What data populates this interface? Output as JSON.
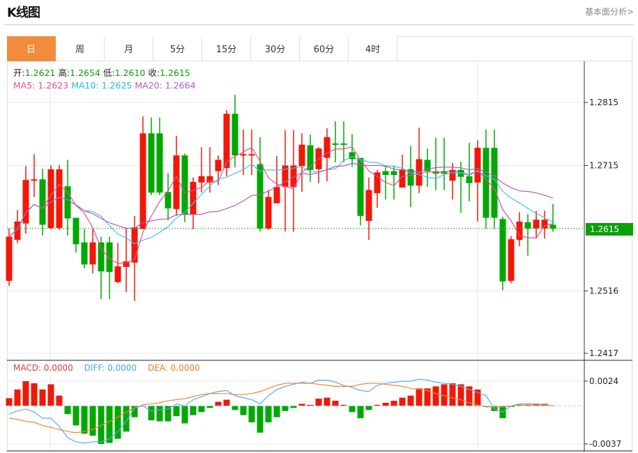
{
  "header": {
    "title": "K线图",
    "fundamental_link": "基本面分析>"
  },
  "tabs": [
    {
      "label": "日",
      "active": true
    },
    {
      "label": "周"
    },
    {
      "label": "月"
    },
    {
      "label": "5分"
    },
    {
      "label": "15分"
    },
    {
      "label": "30分"
    },
    {
      "label": "60分"
    },
    {
      "label": "4时"
    }
  ],
  "ohlc_info": {
    "open_label": "开:",
    "open": "1.2621",
    "high_label": "高:",
    "high": "1.2654",
    "low_label": "低:",
    "low": "1.2610",
    "close_label": "收:",
    "close": "1.2615"
  },
  "ma_info": {
    "ma5": "MA5: 1.2623",
    "ma10": "MA10: 1.2625",
    "ma20": "MA20: 1.2664"
  },
  "macd_info": {
    "macd": "MACD: 0.0000",
    "diff": "DIFF: 0.0000",
    "dea": "DEA: 0.0000"
  },
  "current_price": "1.2615",
  "colors": {
    "up": "#f01808",
    "down": "#00a800",
    "ma5": "#e8508a",
    "ma10": "#3ec8e0",
    "ma20": "#b259c6",
    "diff": "#5aaaf0",
    "dea": "#f5832a",
    "accent": "#f28b3c"
  },
  "chart_data": {
    "type": "candlestick",
    "price_axis": {
      "ticks": [
        "1.2815",
        "1.2715",
        "1.2516",
        "1.2417"
      ],
      "range": [
        1.2417,
        1.2815
      ]
    },
    "macd_axis": {
      "ticks": [
        "0.0024",
        "-0.0037"
      ],
      "range": [
        -0.0037,
        0.0024
      ]
    },
    "candles": [
      [
        1.2532,
        1.2615,
        1.2524,
        1.2602
      ],
      [
        1.2597,
        1.2644,
        1.2592,
        1.2626
      ],
      [
        1.2623,
        1.2714,
        1.2607,
        1.2692
      ],
      [
        1.2692,
        1.2733,
        1.2665,
        1.2693
      ],
      [
        1.2693,
        1.271,
        1.2604,
        1.2621
      ],
      [
        1.2616,
        1.2715,
        1.2614,
        1.2709
      ],
      [
        1.2616,
        1.2716,
        1.2613,
        1.2709
      ],
      [
        1.2682,
        1.2724,
        1.2604,
        1.2631
      ],
      [
        1.2632,
        1.2632,
        1.2577,
        1.259
      ],
      [
        1.2593,
        1.2614,
        1.2552,
        1.2558
      ],
      [
        1.2558,
        1.2614,
        1.2544,
        1.2593
      ],
      [
        1.2593,
        1.2602,
        1.2503,
        1.2547
      ],
      [
        1.2593,
        1.2602,
        1.2503,
        1.2546
      ],
      [
        1.253,
        1.2592,
        1.2528,
        1.2555
      ],
      [
        1.2554,
        1.2615,
        1.2514,
        1.2563
      ],
      [
        1.2561,
        1.2635,
        1.25,
        1.2617
      ],
      [
        1.2614,
        1.2793,
        1.2614,
        1.2766
      ],
      [
        1.2766,
        1.2791,
        1.2668,
        1.2672
      ],
      [
        1.2766,
        1.2791,
        1.2668,
        1.2672
      ],
      [
        1.2673,
        1.2703,
        1.2628,
        1.2647
      ],
      [
        1.2646,
        1.2762,
        1.2635,
        1.2731
      ],
      [
        1.2731,
        1.2734,
        1.2625,
        1.2637
      ],
      [
        1.2637,
        1.2696,
        1.2614,
        1.2689
      ],
      [
        1.2688,
        1.2744,
        1.2672,
        1.2698
      ],
      [
        1.2688,
        1.2744,
        1.2672,
        1.2698
      ],
      [
        1.2706,
        1.2731,
        1.2684,
        1.2724
      ],
      [
        1.2711,
        1.2803,
        1.2698,
        1.2797
      ],
      [
        1.2797,
        1.2827,
        1.2712,
        1.2731
      ],
      [
        1.2731,
        1.2772,
        1.27,
        1.2733
      ],
      [
        1.2731,
        1.2772,
        1.27,
        1.2733
      ],
      [
        1.2717,
        1.276,
        1.261,
        1.2615
      ],
      [
        1.2615,
        1.2676,
        1.2613,
        1.2665
      ],
      [
        1.2655,
        1.273,
        1.2655,
        1.2681
      ],
      [
        1.2681,
        1.2771,
        1.261,
        1.2715
      ],
      [
        1.2681,
        1.2771,
        1.261,
        1.2715
      ],
      [
        1.2714,
        1.2766,
        1.2673,
        1.2748
      ],
      [
        1.2747,
        1.2764,
        1.2689,
        1.2708
      ],
      [
        1.2709,
        1.2744,
        1.2687,
        1.2742
      ],
      [
        1.2727,
        1.2774,
        1.269,
        1.276
      ],
      [
        1.275,
        1.2785,
        1.272,
        1.2748
      ],
      [
        1.275,
        1.2785,
        1.272,
        1.2748
      ],
      [
        1.2736,
        1.2765,
        1.2713,
        1.2725
      ],
      [
        1.2727,
        1.2727,
        1.262,
        1.2635
      ],
      [
        1.2627,
        1.2696,
        1.2597,
        1.2676
      ],
      [
        1.2671,
        1.2708,
        1.2648,
        1.2704
      ],
      [
        1.2706,
        1.2715,
        1.2661,
        1.27
      ],
      [
        1.2706,
        1.2714,
        1.2661,
        1.27
      ],
      [
        1.268,
        1.2732,
        1.268,
        1.2709
      ],
      [
        1.2709,
        1.2746,
        1.2649,
        1.2683
      ],
      [
        1.2683,
        1.2775,
        1.2671,
        1.2725
      ],
      [
        1.2724,
        1.2742,
        1.2681,
        1.2706
      ],
      [
        1.2706,
        1.2759,
        1.2676,
        1.2702
      ],
      [
        1.2706,
        1.2759,
        1.2676,
        1.2702
      ],
      [
        1.2691,
        1.2719,
        1.2661,
        1.2708
      ],
      [
        1.2708,
        1.2721,
        1.264,
        1.2697
      ],
      [
        1.2698,
        1.2751,
        1.2658,
        1.2687
      ],
      [
        1.2688,
        1.2755,
        1.2626,
        1.2743
      ],
      [
        1.2743,
        1.2772,
        1.2615,
        1.2632
      ],
      [
        1.2743,
        1.2772,
        1.2615,
        1.2632
      ],
      [
        1.263,
        1.2634,
        1.2517,
        1.2531
      ],
      [
        1.2532,
        1.2603,
        1.2528,
        1.2598
      ],
      [
        1.2597,
        1.2641,
        1.2587,
        1.2626
      ],
      [
        1.2625,
        1.2638,
        1.2572,
        1.2615
      ],
      [
        1.2615,
        1.2643,
        1.26,
        1.2629
      ],
      [
        1.2615,
        1.2643,
        1.2599,
        1.2629
      ],
      [
        1.2621,
        1.2654,
        1.261,
        1.2615
      ]
    ],
    "macd_hist": [
      0.00075,
      0.0016,
      0.0024,
      0.0022,
      0.0016,
      0.0021,
      0.001,
      -0.0008,
      -0.0019,
      -0.0027,
      -0.0029,
      -0.0037,
      -0.0036,
      -0.0032,
      -0.0025,
      -0.0011,
      0.0,
      -0.0014,
      -0.0015,
      -0.0015,
      -0.001,
      -0.0017,
      -0.0009,
      -0.0006,
      -0.0002,
      0.0004,
      0.0006,
      -0.0004,
      -0.0009,
      -0.0016,
      -0.0026,
      -0.0016,
      -0.0011,
      -0.0005,
      -0.0002,
      0.0002,
      0.0001,
      0.0007,
      0.0008,
      0.0005,
      0.0001,
      -0.0006,
      -0.0012,
      -0.0004,
      0.0001,
      0.0003,
      0.0005,
      0.0008,
      0.001,
      0.0017,
      0.0017,
      0.0019,
      0.0021,
      0.0022,
      0.0021,
      0.0019,
      0.0016,
      -0.0001,
      -0.0005,
      -0.0012,
      -0.0001,
      0.0001,
      0.0001,
      0.0002,
      0.0002,
      0.0
    ],
    "diff": [
      -0.0008,
      -0.0005,
      -0.0003,
      -0.0006,
      -0.0012,
      -0.0012,
      -0.002,
      -0.0031,
      -0.0035,
      -0.0036,
      -0.0035,
      -0.0035,
      -0.0032,
      -0.0025,
      -0.0015,
      -0.0002,
      0.0,
      -0.0005,
      -0.0004,
      -0.0003,
      0.0002,
      0.0,
      0.0006,
      0.0009,
      0.0012,
      0.0014,
      0.0015,
      0.001,
      0.0008,
      0.0006,
      0.0002,
      0.001,
      0.0016,
      0.0019,
      0.0021,
      0.0023,
      0.0022,
      0.0025,
      0.0025,
      0.0023,
      0.002,
      0.0018,
      0.0015,
      0.0014,
      0.002,
      0.0022,
      0.0023,
      0.0024,
      0.0024,
      0.0026,
      0.0025,
      0.0023,
      0.0022,
      0.0021,
      0.0019,
      0.0016,
      0.0013,
      0.001,
      -0.0003,
      -0.0006,
      0.0,
      0.0002,
      0.0002,
      0.0002,
      0.0001,
      0.0
    ],
    "dea": [
      -0.0012,
      -0.0013,
      -0.0015,
      -0.0016,
      -0.0019,
      -0.0021,
      -0.0023,
      -0.0025,
      -0.0026,
      -0.0025,
      -0.0023,
      -0.0019,
      -0.0015,
      -0.0011,
      -0.0006,
      -0.0002,
      0.0001,
      0.0002,
      0.0003,
      0.0005,
      0.0006,
      0.0007,
      0.0009,
      0.0011,
      0.0012,
      0.0012,
      0.0012,
      0.0011,
      0.0011,
      0.0012,
      0.0014,
      0.0017,
      0.002,
      0.0022,
      0.0022,
      0.0022,
      0.0022,
      0.0021,
      0.002,
      0.0019,
      0.0019,
      0.0019,
      0.0021,
      0.0022,
      0.0022,
      0.0021,
      0.002,
      0.0019,
      0.0017,
      0.0016,
      0.0015,
      0.0012,
      0.001,
      0.0008,
      0.0006,
      0.0003,
      0.0001,
      -0.0001,
      -0.0001,
      -0.0001,
      0.0,
      0.0001,
      0.0001,
      0.0001,
      0.0001,
      0.0
    ]
  }
}
